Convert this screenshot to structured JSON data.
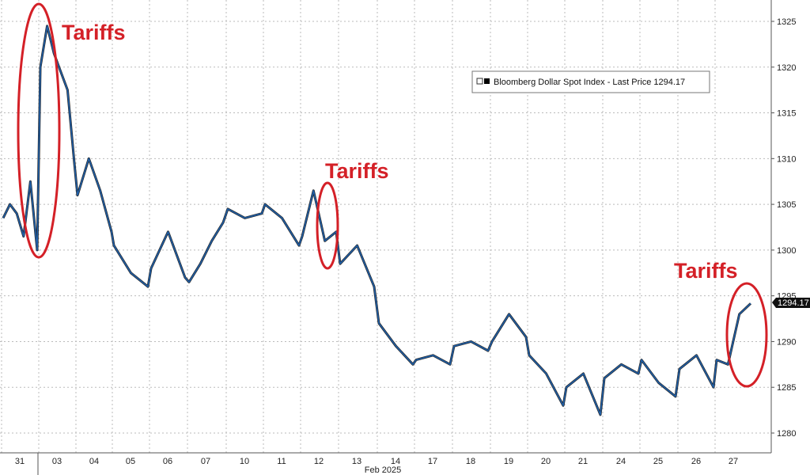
{
  "chart_data": {
    "type": "line",
    "title": "",
    "xlabel": "Feb 2025",
    "ylabel": "",
    "ylim": [
      1280,
      1325
    ],
    "y_ticks": [
      1280,
      1285,
      1290,
      1295,
      1300,
      1305,
      1310,
      1315,
      1320,
      1325
    ],
    "x_ticks": [
      "31",
      "03",
      "04",
      "05",
      "06",
      "07",
      "10",
      "11",
      "12",
      "13",
      "14",
      "17",
      "18",
      "19",
      "20",
      "21",
      "24",
      "25",
      "26",
      "27"
    ],
    "month_label": "Feb 2025",
    "grid": true,
    "legend_position": "top-right",
    "series": [
      {
        "name": "Bloomberg Dollar Spot Index - Last Price 1294.17",
        "color": "#1f5fa8",
        "points": [
          {
            "x": "31",
            "y": 1303.5
          },
          {
            "x": "31",
            "y": 1305.0
          },
          {
            "x": "31",
            "y": 1304.0
          },
          {
            "x": "31",
            "y": 1301.5
          },
          {
            "x": "31",
            "y": 1307.5
          },
          {
            "x": "31",
            "y": 1300.0
          },
          {
            "x": "03",
            "y": 1320.0
          },
          {
            "x": "03",
            "y": 1324.5
          },
          {
            "x": "03",
            "y": 1321.5
          },
          {
            "x": "03",
            "y": 1319.5
          },
          {
            "x": "03",
            "y": 1317.5
          },
          {
            "x": "03",
            "y": 1309.5
          },
          {
            "x": "04",
            "y": 1306.0
          },
          {
            "x": "04",
            "y": 1310.0
          },
          {
            "x": "04",
            "y": 1306.5
          },
          {
            "x": "04",
            "y": 1302.0
          },
          {
            "x": "05",
            "y": 1300.5
          },
          {
            "x": "05",
            "y": 1297.5
          },
          {
            "x": "05",
            "y": 1296.0
          },
          {
            "x": "06",
            "y": 1298.0
          },
          {
            "x": "06",
            "y": 1302.0
          },
          {
            "x": "06",
            "y": 1297.0
          },
          {
            "x": "07",
            "y": 1296.5
          },
          {
            "x": "07",
            "y": 1298.5
          },
          {
            "x": "07",
            "y": 1301.0
          },
          {
            "x": "07",
            "y": 1303.0
          },
          {
            "x": "10",
            "y": 1304.5
          },
          {
            "x": "10",
            "y": 1303.5
          },
          {
            "x": "10",
            "y": 1304.0
          },
          {
            "x": "11",
            "y": 1305.0
          },
          {
            "x": "11",
            "y": 1303.5
          },
          {
            "x": "11",
            "y": 1300.5
          },
          {
            "x": "12",
            "y": 1301.5
          },
          {
            "x": "12",
            "y": 1306.5
          },
          {
            "x": "12",
            "y": 1301.0
          },
          {
            "x": "12",
            "y": 1302.0
          },
          {
            "x": "13",
            "y": 1298.5
          },
          {
            "x": "13",
            "y": 1300.5
          },
          {
            "x": "13",
            "y": 1296.0
          },
          {
            "x": "14",
            "y": 1292.0
          },
          {
            "x": "14",
            "y": 1289.5
          },
          {
            "x": "14",
            "y": 1287.5
          },
          {
            "x": "17",
            "y": 1288.0
          },
          {
            "x": "17",
            "y": 1288.5
          },
          {
            "x": "17",
            "y": 1287.5
          },
          {
            "x": "18",
            "y": 1289.5
          },
          {
            "x": "18",
            "y": 1290.0
          },
          {
            "x": "18",
            "y": 1289.0
          },
          {
            "x": "19",
            "y": 1290.0
          },
          {
            "x": "19",
            "y": 1293.0
          },
          {
            "x": "19",
            "y": 1290.5
          },
          {
            "x": "20",
            "y": 1288.5
          },
          {
            "x": "20",
            "y": 1286.5
          },
          {
            "x": "20",
            "y": 1283.0
          },
          {
            "x": "21",
            "y": 1285.0
          },
          {
            "x": "21",
            "y": 1286.5
          },
          {
            "x": "21",
            "y": 1282.0
          },
          {
            "x": "24",
            "y": 1286.0
          },
          {
            "x": "24",
            "y": 1287.5
          },
          {
            "x": "24",
            "y": 1286.5
          },
          {
            "x": "25",
            "y": 1288.0
          },
          {
            "x": "25",
            "y": 1285.5
          },
          {
            "x": "25",
            "y": 1284.0
          },
          {
            "x": "26",
            "y": 1287.0
          },
          {
            "x": "26",
            "y": 1288.5
          },
          {
            "x": "26",
            "y": 1285.0
          },
          {
            "x": "27",
            "y": 1288.0
          },
          {
            "x": "27",
            "y": 1287.5
          },
          {
            "x": "27",
            "y": 1293.0
          },
          {
            "x": "27",
            "y": 1294.17
          }
        ]
      }
    ],
    "last_value_label": "1294.17",
    "legend": {
      "text": "Bloomberg Dollar Spot Index - Last Price 1294.17"
    },
    "annotations": [
      {
        "text": "Tariffs",
        "x": "03"
      },
      {
        "text": "Tariffs",
        "x": "12"
      },
      {
        "text": "Tariffs",
        "x": "27"
      }
    ],
    "colors": {
      "line": "#1f5fa8",
      "annotation": "#d42027",
      "grid": "#bbbbbb"
    }
  }
}
